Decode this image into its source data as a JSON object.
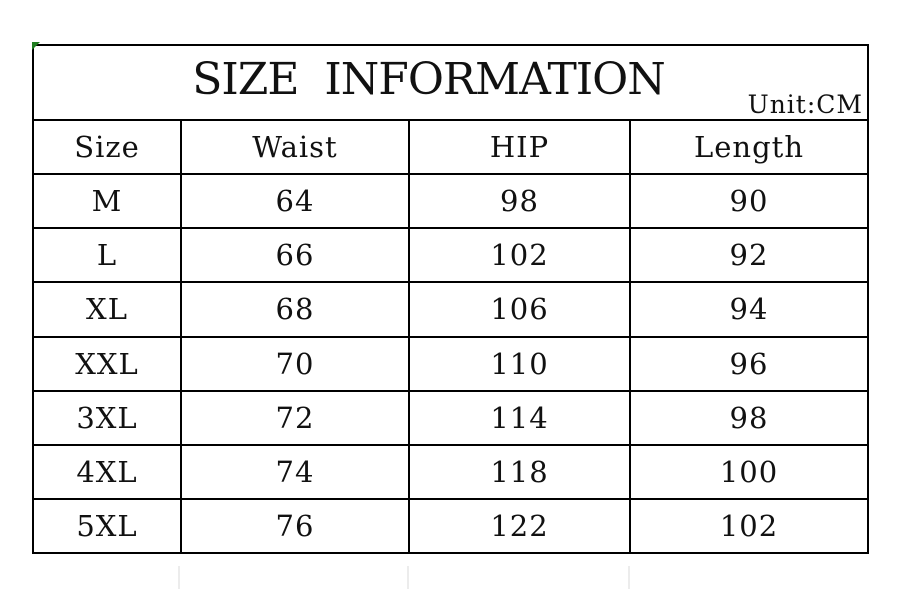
{
  "chart_data": {
    "type": "table",
    "title": "SIZE  INFORMATION",
    "unit_label": "Unit:CM",
    "columns": [
      "Size",
      "Waist",
      "HIP",
      "Length"
    ],
    "rows": [
      [
        "M",
        "64",
        "98",
        "90"
      ],
      [
        "L",
        "66",
        "102",
        "92"
      ],
      [
        "XL",
        "68",
        "106",
        "94"
      ],
      [
        "XXL",
        "70",
        "110",
        "96"
      ],
      [
        "3XL",
        "72",
        "114",
        "98"
      ],
      [
        "4XL",
        "74",
        "118",
        "100"
      ],
      [
        "5XL",
        "76",
        "122",
        "102"
      ]
    ],
    "layout": {
      "border_color": "#000000",
      "background": "#ffffff",
      "corner_marker_color": "#1f7d1f",
      "faint_gridline_color": "#ececec"
    }
  }
}
